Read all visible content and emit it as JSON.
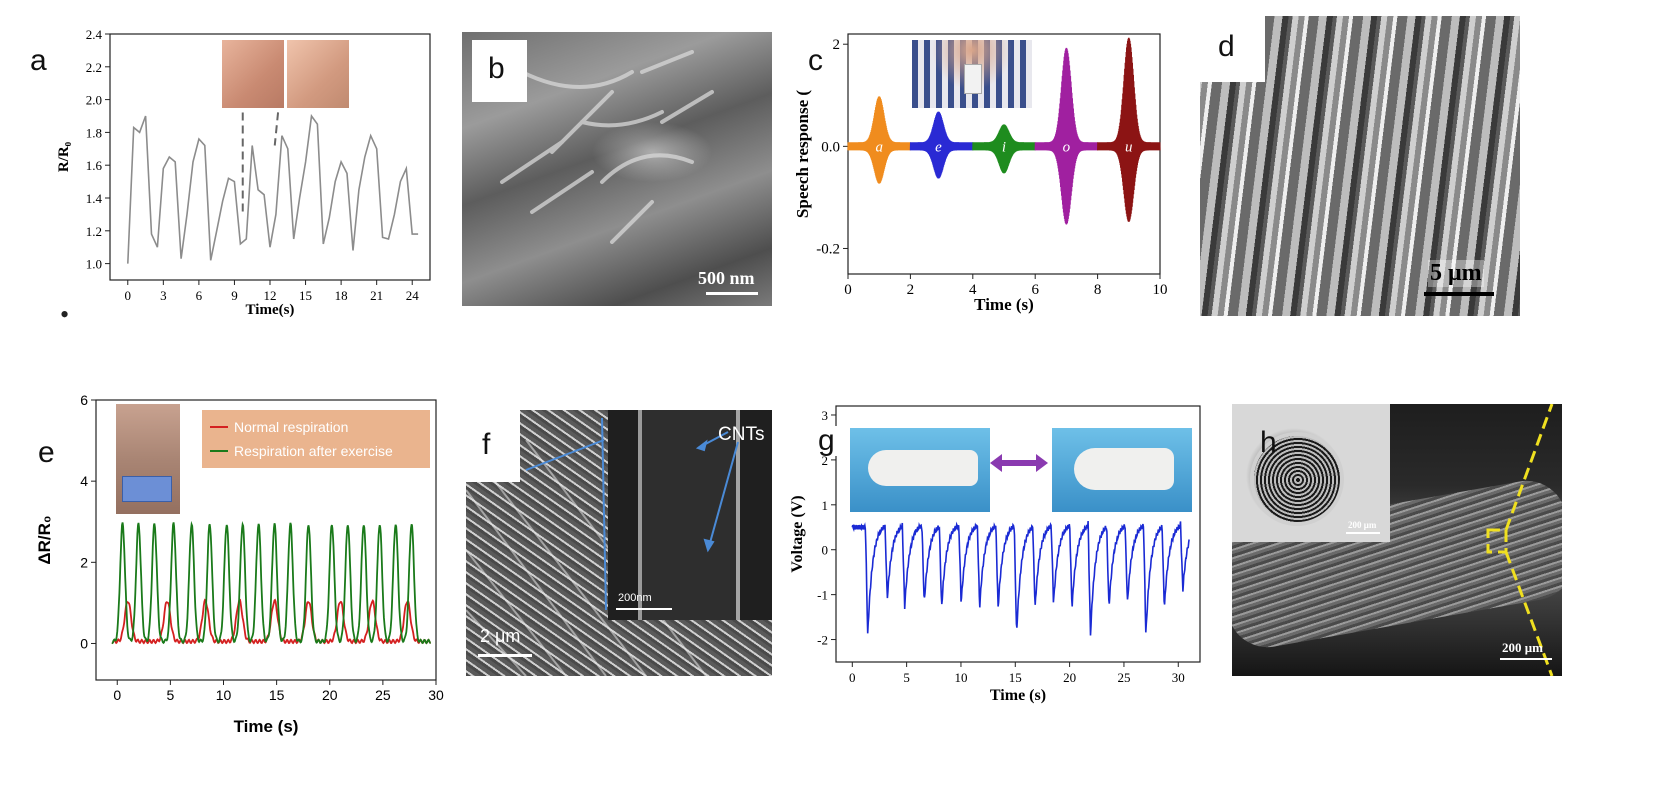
{
  "figure": {
    "bullet": "•",
    "panels": {
      "a": {
        "letter": "a"
      },
      "b": {
        "letter": "b",
        "scale_bar": "500 nm"
      },
      "c": {
        "letter": "c"
      },
      "d": {
        "letter": "d",
        "scale_bar": "5 μm"
      },
      "e": {
        "letter": "e"
      },
      "f": {
        "letter": "f",
        "scale_bar": "2 μm",
        "inset_scale_bar": "200nm",
        "annotation": "CNTs"
      },
      "g": {
        "letter": "g"
      },
      "h": {
        "letter": "h",
        "scale_bar": "200 μm",
        "inset_scale_bar": "200 μm"
      }
    }
  },
  "chart_data": [
    {
      "id": "a",
      "type": "line",
      "xlabel": "Time(s)",
      "ylabel": "R/R₀",
      "xlim": [
        -1.5,
        25.5
      ],
      "ylim": [
        0.9,
        2.4
      ],
      "xticks": [
        0,
        3,
        6,
        9,
        12,
        15,
        18,
        21,
        24
      ],
      "yticks": [
        1.0,
        1.2,
        1.4,
        1.6,
        1.8,
        2.0,
        2.2,
        2.4
      ],
      "color": "#8c8c8c",
      "series": [
        {
          "x": [
            0,
            0.5,
            1,
            1.5,
            2,
            2.5,
            3,
            3.5,
            4,
            4.5,
            5,
            5.5,
            6,
            6.5,
            7,
            7.5,
            8,
            8.5,
            9,
            9.5,
            10,
            10.5,
            11,
            11.5,
            12,
            12.5,
            13,
            13.5,
            14,
            14.5,
            15,
            15.5,
            16,
            16.5,
            17,
            17.5,
            18,
            18.5,
            19,
            19.5,
            20,
            20.5,
            21,
            21.5,
            22,
            22.5,
            23,
            23.5,
            24,
            24.5
          ],
          "y": [
            1.0,
            1.83,
            1.8,
            1.9,
            1.18,
            1.1,
            1.58,
            1.65,
            1.62,
            1.03,
            1.3,
            1.62,
            1.76,
            1.72,
            1.02,
            1.2,
            1.38,
            1.52,
            1.5,
            1.12,
            1.15,
            1.72,
            1.45,
            1.42,
            1.1,
            1.3,
            1.78,
            1.7,
            1.15,
            1.4,
            1.62,
            1.9,
            1.85,
            1.12,
            1.28,
            1.5,
            1.62,
            1.55,
            1.08,
            1.45,
            1.65,
            1.78,
            1.7,
            1.16,
            1.15,
            1.3,
            1.5,
            1.58,
            1.18,
            1.18
          ]
        }
      ]
    },
    {
      "id": "c",
      "type": "line",
      "xlabel": "Time (s)",
      "ylabel": "Speech response (",
      "xlim": [
        0,
        10
      ],
      "ylim": [
        -0.25,
        0.22
      ],
      "xticks": [
        0,
        2,
        4,
        6,
        8,
        10
      ],
      "yticks": [
        -0.2,
        0.0,
        2
      ],
      "ytick_labels": [
        "-0.2",
        "0.0",
        "2"
      ],
      "series": [
        {
          "label": "a",
          "start": 0,
          "end": 2,
          "peak_at": 1,
          "amp_up": 0.09,
          "amp_down": 0.065,
          "color": "#f08c1e"
        },
        {
          "label": "e",
          "start": 2,
          "end": 4,
          "peak_at": 2.9,
          "amp_up": 0.06,
          "amp_down": 0.055,
          "color": "#2a2ad4"
        },
        {
          "label": "i",
          "start": 4,
          "end": 6,
          "peak_at": 5,
          "amp_up": 0.035,
          "amp_down": 0.045,
          "color": "#1e8c1e"
        },
        {
          "label": "o",
          "start": 6,
          "end": 8,
          "peak_at": 7,
          "amp_up": 0.185,
          "amp_down": 0.145,
          "color": "#a020a0"
        },
        {
          "label": "u",
          "start": 8,
          "end": 10,
          "peak_at": 9,
          "amp_up": 0.205,
          "amp_down": 0.14,
          "color": "#8c1414"
        }
      ]
    },
    {
      "id": "e",
      "type": "line",
      "xlabel": "Time (s)",
      "ylabel": "ΔR/R₀",
      "xlim": [
        -2,
        30
      ],
      "ylim": [
        -0.9,
        6
      ],
      "xticks": [
        0,
        5,
        10,
        15,
        20,
        25,
        30
      ],
      "yticks": [
        0,
        2,
        4,
        6
      ],
      "legend_position": "top-right",
      "series": [
        {
          "name": "Normal respiration",
          "color": "#d42020",
          "peaks": [
            1,
            4.7,
            8.3,
            11.5,
            14.8,
            18,
            21,
            24,
            27.3
          ],
          "height": 1.0
        },
        {
          "name": "Respiration after exercise",
          "color": "#1a7a1a",
          "peaks": [
            0.5,
            2,
            3.5,
            5.3,
            7,
            8.7,
            10.3,
            11.8,
            13.3,
            14.8,
            16.3,
            18,
            20.2,
            21.7,
            23.2,
            24.7,
            26.2,
            27.7
          ],
          "height": 2.9
        }
      ]
    },
    {
      "id": "g",
      "type": "line",
      "xlabel": "Time (s)",
      "ylabel": "Voltage (V)",
      "xlim": [
        -1.5,
        32
      ],
      "ylim": [
        -2.5,
        3.2
      ],
      "xticks": [
        0,
        5,
        10,
        15,
        20,
        25,
        30
      ],
      "yticks": [
        -2,
        -1,
        0,
        1,
        2,
        3
      ],
      "color": "#1a2ad4",
      "series": [
        {
          "name": "",
          "peaks": [
            1.2,
            3,
            4.6,
            6.4,
            8,
            9.8,
            11.5,
            13.2,
            14.9,
            16.6,
            18.3,
            20,
            21.7,
            23.4,
            25.1,
            26.8,
            28.5,
            30.2
          ],
          "troughs": [
            -1.9,
            -1.1,
            -1.3,
            -1.2,
            -1.3,
            -1.2,
            -1.3,
            -1.3,
            -1.9,
            -1.3,
            -1.2,
            -1.3,
            -1.9,
            -1.3,
            -1.2,
            -1.9,
            -1.3,
            -0.9
          ]
        }
      ]
    }
  ]
}
